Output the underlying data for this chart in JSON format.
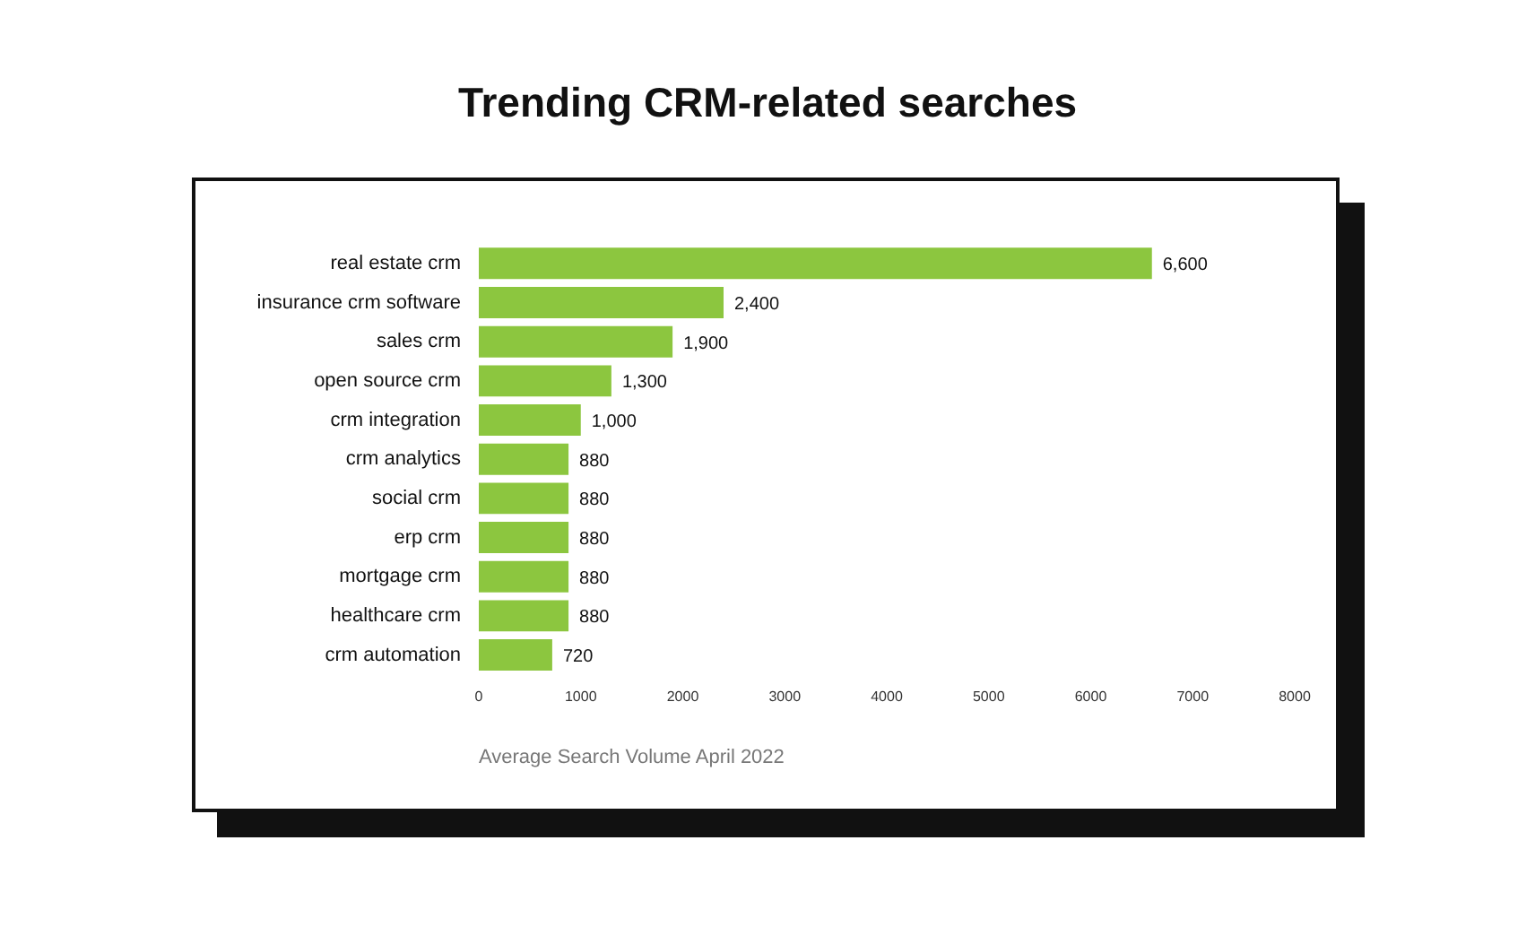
{
  "chart_data": {
    "type": "bar",
    "orientation": "horizontal",
    "title": "Trending CRM-related searches",
    "xlabel": "Average Search Volume April 2022",
    "categories": [
      "real estate crm",
      "insurance crm software",
      "sales crm",
      "open source crm",
      "crm integration",
      "crm analytics",
      "social crm",
      "erp crm",
      "mortgage crm",
      "healthcare crm",
      "crm automation"
    ],
    "values": [
      6600,
      2400,
      1900,
      1300,
      1000,
      880,
      880,
      880,
      880,
      880,
      720
    ],
    "color": "#8cc63f",
    "xlim": [
      0,
      8000
    ],
    "xticks": [
      0,
      1000,
      2000,
      3000,
      4000,
      5000,
      6000,
      7000,
      8000
    ],
    "grid": false,
    "legend": false,
    "value_labels": [
      "6,600",
      "2,400",
      "1,900",
      "1,300",
      "1,000",
      "880",
      "880",
      "880",
      "880",
      "880",
      "720"
    ]
  }
}
